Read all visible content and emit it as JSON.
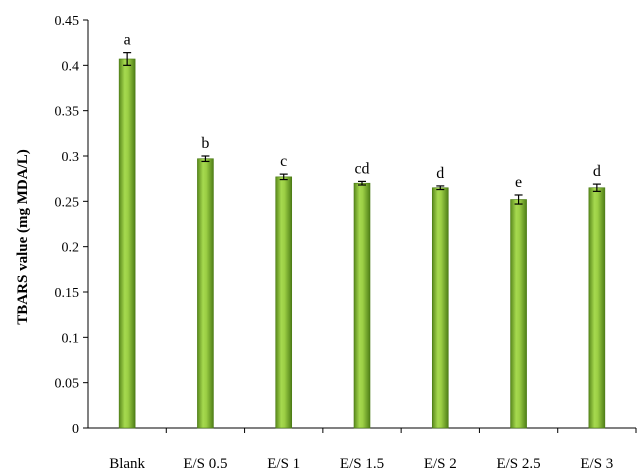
{
  "chart_data": {
    "type": "bar",
    "title": "",
    "xlabel": "",
    "ylabel": "TBARS value (mg MDA/L)",
    "ylim": [
      0,
      0.45
    ],
    "yticks": [
      "0",
      "0.05",
      "0.1",
      "0.15",
      "0.2",
      "0.25",
      "0.3",
      "0.35",
      "0.4",
      "0.45"
    ],
    "grid": false,
    "legend": "none",
    "bar_color": "#8cc63f",
    "categories": [
      "Blank",
      "E/S 0.5",
      "E/S 1",
      "E/S 1.5",
      "E/S 2",
      "E/S 2.5",
      "E/S 3"
    ],
    "values": [
      0.407,
      0.297,
      0.277,
      0.27,
      0.265,
      0.252,
      0.265
    ],
    "errors": [
      0.007,
      0.003,
      0.003,
      0.002,
      0.002,
      0.005,
      0.004
    ],
    "significance_letters": [
      "a",
      "b",
      "c",
      "cd",
      "d",
      "e",
      "d"
    ]
  }
}
